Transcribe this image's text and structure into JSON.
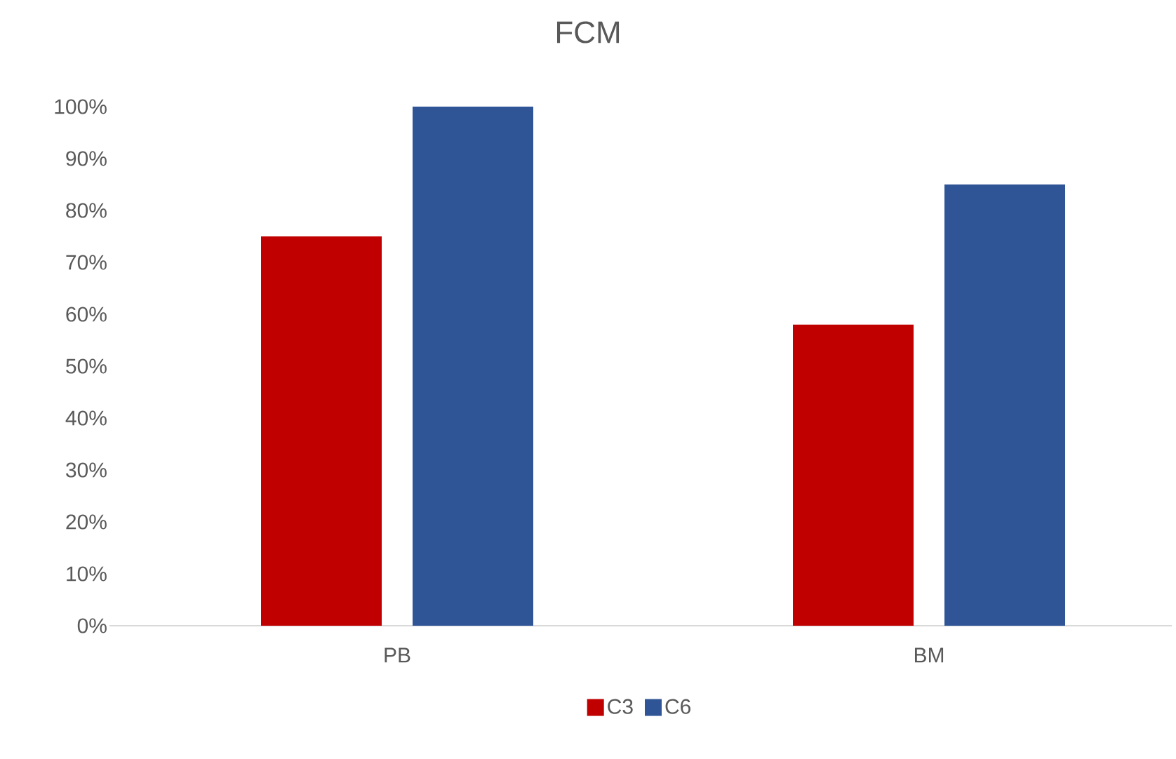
{
  "chart_data": {
    "type": "bar",
    "title": "FCM",
    "categories": [
      "PB",
      "BM"
    ],
    "series": [
      {
        "name": "C3",
        "color": "#c00000",
        "values": [
          75,
          58
        ]
      },
      {
        "name": "C6",
        "color": "#2f5597",
        "values": [
          100,
          85
        ]
      }
    ],
    "ylim": [
      0,
      100
    ],
    "yticks": [
      {
        "value": 0,
        "label": "0%"
      },
      {
        "value": 10,
        "label": "10%"
      },
      {
        "value": 20,
        "label": "20%"
      },
      {
        "value": 30,
        "label": "30%"
      },
      {
        "value": 40,
        "label": "40%"
      },
      {
        "value": 50,
        "label": "50%"
      },
      {
        "value": 60,
        "label": "60%"
      },
      {
        "value": 70,
        "label": "70%"
      },
      {
        "value": 80,
        "label": "80%"
      },
      {
        "value": 90,
        "label": "90%"
      },
      {
        "value": 100,
        "label": "100%"
      }
    ],
    "legend": "bottom"
  }
}
